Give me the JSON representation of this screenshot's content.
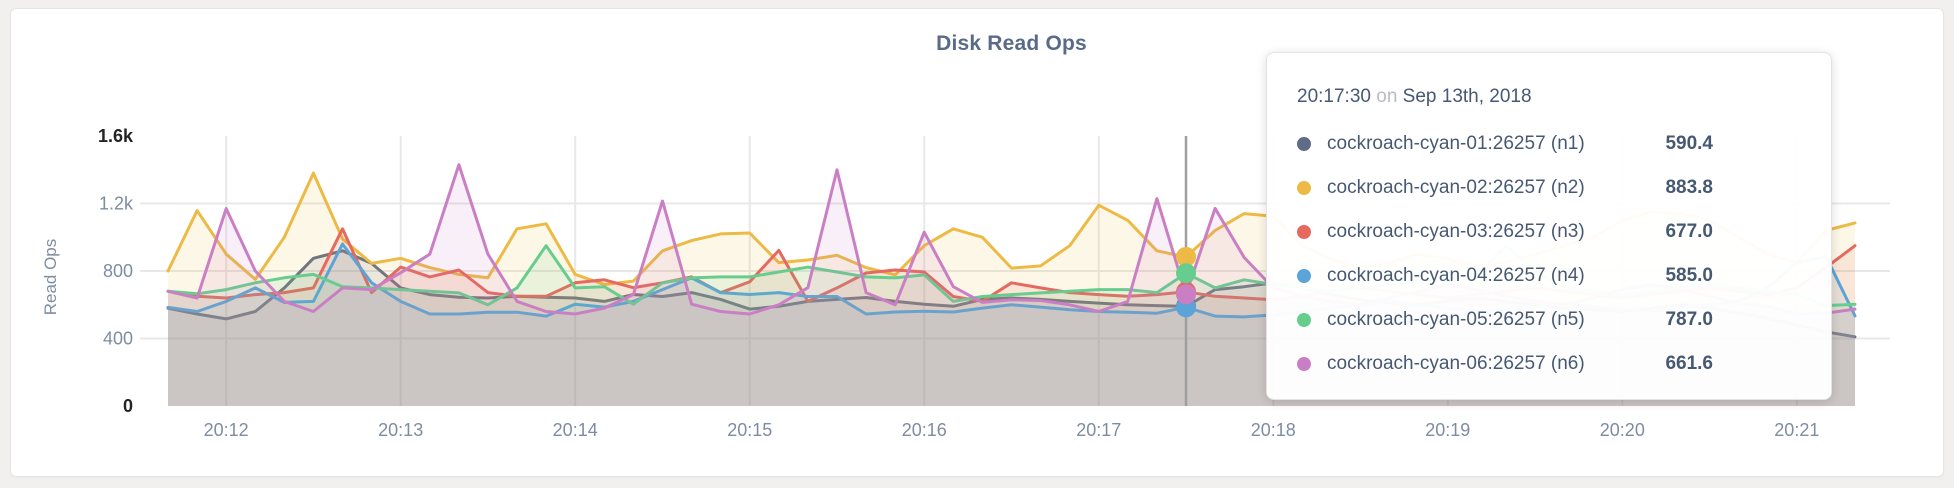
{
  "page": {
    "background": "#f1f0ee",
    "panel_background": "#ffffff"
  },
  "chart": {
    "title": "Disk Read Ops",
    "y_axis": {
      "label": "Read Ops",
      "ticks": [
        {
          "label": "0",
          "value": 0,
          "emphasis": true
        },
        {
          "label": "400",
          "value": 400,
          "emphasis": false
        },
        {
          "label": "800",
          "value": 800,
          "emphasis": false
        },
        {
          "label": "1.2k",
          "value": 1200,
          "emphasis": false
        },
        {
          "label": "1.6k",
          "value": 1600,
          "emphasis": true
        }
      ]
    },
    "x_axis": {
      "tick_labels": [
        "20:12",
        "20:13",
        "20:14",
        "20:15",
        "20:16",
        "20:17",
        "20:18",
        "20:19",
        "20:20",
        "20:21"
      ]
    },
    "colors": {
      "grid": "#e8e8e8",
      "hover_line": "#9f9f9f",
      "tick_text": "#7e8ca2",
      "tick_text_emphasis": "#242424"
    }
  },
  "chart_data": {
    "type": "area",
    "x_start": "20:11:40",
    "x_step_seconds": 10,
    "point_count": 59,
    "x_minute_tick_indices": [
      2,
      8,
      14,
      20,
      26,
      32,
      38,
      44,
      50,
      56
    ],
    "ylim": [
      0,
      1600
    ],
    "ylabel": "Read Ops",
    "title": "Disk Read Ops",
    "grid": true,
    "fill_opacity": 0.12,
    "hover": {
      "index": 35,
      "time": "20:17:30",
      "date": "Sep 13th, 2018"
    },
    "series": [
      {
        "name": "cockroach-cyan-01:26257 (n1)",
        "node": "n1",
        "color": "#5f6c87",
        "values": [
          580,
          545,
          516,
          560,
          700,
          875,
          920,
          845,
          700,
          660,
          645,
          640,
          650,
          645,
          640,
          620,
          661,
          649,
          672,
          632,
          574,
          591,
          620,
          632,
          643,
          620,
          603,
          591,
          632,
          640,
          632,
          620,
          610,
          600,
          595,
          590.4,
          690,
          707,
          730,
          700,
          660,
          630,
          610,
          600,
          620,
          640,
          620,
          600,
          580,
          570,
          560,
          580,
          600,
          580,
          550,
          520,
          480,
          440,
          410
        ]
      },
      {
        "name": "cockroach-cyan-02:26257 (n2)",
        "node": "n2",
        "color": "#ecba45",
        "values": [
          800,
          1158,
          900,
          750,
          1000,
          1380,
          990,
          845,
          875,
          820,
          780,
          760,
          1050,
          1080,
          780,
          720,
          740,
          920,
          980,
          1020,
          1025,
          850,
          865,
          893,
          820,
          777,
          950,
          1050,
          1000,
          817,
          830,
          950,
          1190,
          1100,
          920,
          883.8,
          1040,
          1140,
          1125,
          950,
          870,
          820,
          850,
          900,
          870,
          830,
          850,
          900,
          950,
          1000,
          1100,
          1150,
          1140,
          1100,
          1000,
          900,
          850,
          1040,
          1085
        ]
      },
      {
        "name": "cockroach-cyan-03:26257 (n3)",
        "node": "n3",
        "color": "#e5695e",
        "values": [
          680,
          650,
          640,
          660,
          672,
          700,
          1050,
          672,
          823,
          765,
          806,
          672,
          650,
          650,
          730,
          748,
          701,
          730,
          765,
          672,
          736,
          922,
          620,
          700,
          788,
          806,
          794,
          649,
          620,
          730,
          700,
          672,
          660,
          650,
          660,
          677.0,
          650,
          640,
          630,
          650,
          680,
          700,
          680,
          660,
          640,
          660,
          680,
          700,
          680,
          660,
          640,
          660,
          680,
          700,
          680,
          660,
          700,
          820,
          950
        ]
      },
      {
        "name": "cockroach-cyan-04:26257 (n4)",
        "node": "n4",
        "color": "#5ca3d7",
        "values": [
          585,
          560,
          620,
          700,
          614,
          620,
          960,
          730,
          620,
          545,
          545,
          556,
          556,
          533,
          603,
          586,
          620,
          690,
          759,
          672,
          661,
          672,
          649,
          649,
          545,
          557,
          562,
          557,
          580,
          600,
          586,
          570,
          560,
          555,
          550,
          585,
          533,
          528,
          540,
          560,
          580,
          600,
          620,
          600,
          580,
          560,
          570,
          590,
          610,
          590,
          570,
          560,
          580,
          600,
          620,
          700,
          850,
          887,
          534
        ]
      },
      {
        "name": "cockroach-cyan-05:26257 (n5)",
        "node": "n5",
        "color": "#67cd8e",
        "values": [
          680,
          665,
          690,
          730,
          760,
          780,
          707,
          700,
          690,
          680,
          670,
          600,
          700,
          950,
          700,
          707,
          603,
          730,
          759,
          765,
          765,
          794,
          823,
          794,
          765,
          759,
          777,
          620,
          649,
          660,
          670,
          680,
          690,
          690,
          672,
          787.0,
          700,
          748,
          720,
          700,
          680,
          700,
          720,
          740,
          760,
          780,
          950,
          800,
          700,
          680,
          660,
          680,
          700,
          720,
          700,
          680,
          660,
          595,
          603
        ]
      },
      {
        "name": "cockroach-cyan-06:26257 (n6)",
        "node": "n6",
        "color": "#ca7fc4",
        "values": [
          680,
          640,
          1170,
          800,
          620,
          560,
          700,
          690,
          790,
          900,
          1430,
          900,
          620,
          560,
          545,
          580,
          661,
          1215,
          603,
          560,
          545,
          600,
          701,
          1400,
          672,
          600,
          1030,
          707,
          614,
          630,
          625,
          600,
          560,
          620,
          1229,
          661.6,
          1171,
          880,
          700,
          650,
          620,
          600,
          640,
          680,
          720,
          690,
          650,
          620,
          600,
          640,
          690,
          720,
          690,
          650,
          610,
          590,
          545,
          550,
          574
        ]
      }
    ]
  },
  "tooltip": {
    "time": "20:17:30",
    "conjunction": "on",
    "date": "Sep 13th, 2018",
    "rows": [
      {
        "label": "cockroach-cyan-01:26257 (n1)",
        "value": "590.4",
        "color": "#5f6c87"
      },
      {
        "label": "cockroach-cyan-02:26257 (n2)",
        "value": "883.8",
        "color": "#ecba45"
      },
      {
        "label": "cockroach-cyan-03:26257 (n3)",
        "value": "677.0",
        "color": "#e5695e"
      },
      {
        "label": "cockroach-cyan-04:26257 (n4)",
        "value": "585.0",
        "color": "#5ca3d7"
      },
      {
        "label": "cockroach-cyan-05:26257 (n5)",
        "value": "787.0",
        "color": "#67cd8e"
      },
      {
        "label": "cockroach-cyan-06:26257 (n6)",
        "value": "661.6",
        "color": "#ca7fc4"
      }
    ]
  }
}
